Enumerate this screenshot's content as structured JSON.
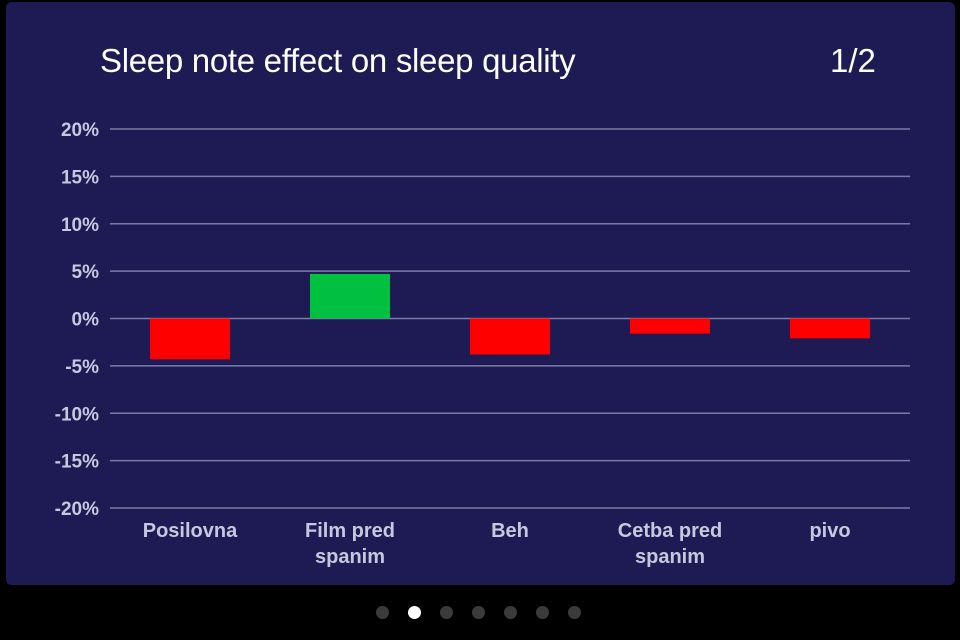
{
  "title": "Sleep note effect on sleep quality",
  "page_indicator": "1/2",
  "colors": {
    "background": "#1d1a54",
    "gridline": "#7c7aa8",
    "tick_label": "#c7c8de",
    "positive": "#00c03f",
    "negative": "#ff0000",
    "dot_active": "#ffffff",
    "dot_inactive": "#3b3b3b"
  },
  "pager": {
    "count": 7,
    "active_index": 1
  },
  "chart_data": {
    "type": "bar",
    "title": "Sleep note effect on sleep quality",
    "xlabel": "",
    "ylabel": "",
    "categories": [
      [
        "Posilovna"
      ],
      [
        "Film pred",
        "spanim"
      ],
      [
        "Beh"
      ],
      [
        "Cetba pred",
        "spanim"
      ],
      [
        "pivo"
      ]
    ],
    "values": [
      -4.3,
      4.7,
      -3.8,
      -1.6,
      -2.1
    ],
    "ylim": [
      -20,
      20
    ],
    "yticks": [
      20,
      15,
      10,
      5,
      0,
      -5,
      -10,
      -15,
      -20
    ],
    "ytick_labels": [
      "20%",
      "15%",
      "10%",
      "5%",
      "0%",
      "-5%",
      "-10%",
      "-15%",
      "-20%"
    ],
    "grid": true,
    "legend": "none"
  }
}
